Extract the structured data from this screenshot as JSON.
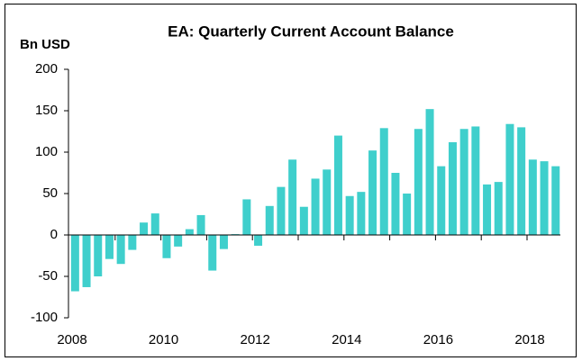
{
  "chart_data": {
    "type": "bar",
    "title": "EA: Quarterly Current Account Balance",
    "y_label": "Bn USD",
    "categories": [
      "2008",
      null,
      null,
      null,
      null,
      null,
      null,
      null,
      "2010",
      null,
      null,
      null,
      null,
      null,
      null,
      null,
      "2012",
      null,
      null,
      null,
      null,
      null,
      null,
      null,
      "2014",
      null,
      null,
      null,
      null,
      null,
      null,
      null,
      "2016",
      null,
      null,
      null,
      null,
      null,
      null,
      null,
      "2018",
      null,
      null
    ],
    "values": [
      -68,
      -63,
      -50,
      -29,
      -35,
      -18,
      15,
      26,
      -28,
      -14,
      7,
      24,
      -43,
      -17,
      1,
      43,
      -13,
      35,
      58,
      91,
      34,
      68,
      79,
      120,
      47,
      52,
      102,
      129,
      75,
      50,
      128,
      152,
      83,
      112,
      128,
      131,
      61,
      64,
      134,
      130,
      91,
      89,
      83
    ],
    "color": "#3fcfcc",
    "ylim": [
      -100,
      200
    ],
    "yticks": [
      -100,
      -50,
      0,
      50,
      100,
      150,
      200
    ],
    "grid": false
  }
}
